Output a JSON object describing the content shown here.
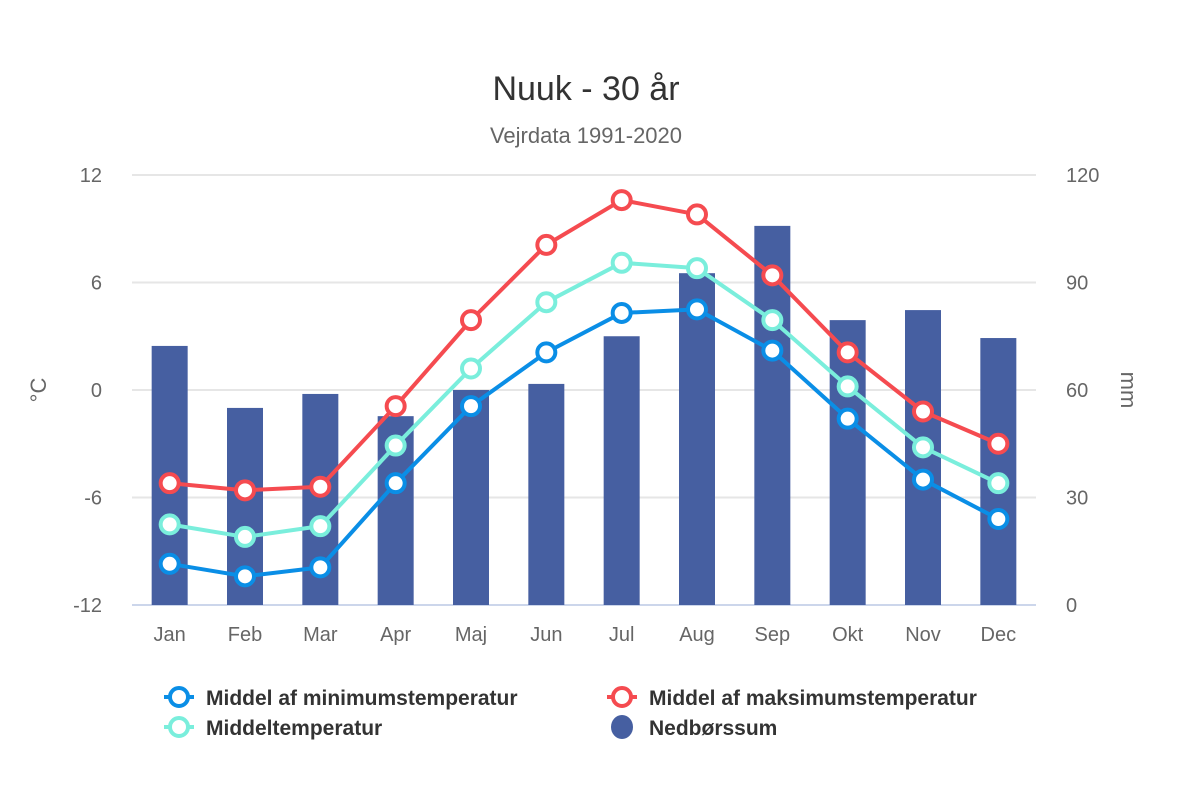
{
  "chart_data": {
    "type": "bar+line",
    "title": "Nuuk - 30 år",
    "subtitle": "Vejrdata 1991-2020",
    "categories": [
      "Jan",
      "Feb",
      "Mar",
      "Apr",
      "Maj",
      "Jun",
      "Jul",
      "Aug",
      "Sep",
      "Okt",
      "Nov",
      "Dec"
    ],
    "y_left": {
      "label": "°C",
      "range": [
        -12,
        12
      ],
      "ticks": [
        -12,
        -6,
        0,
        6,
        12
      ],
      "tick_labels": [
        "-12",
        "-6",
        "0",
        "6",
        "12"
      ]
    },
    "y_right": {
      "label": "mm",
      "range": [
        0,
        120
      ],
      "ticks": [
        0,
        30,
        60,
        90,
        120
      ],
      "tick_labels": [
        "0",
        "30",
        "60",
        "90",
        "120"
      ]
    },
    "grid": true,
    "legend_position": "bottom",
    "series": [
      {
        "name": "Middel af minimumstemperatur",
        "type": "line",
        "axis": "left",
        "color": "#0a8ee6",
        "values": [
          -9.7,
          -10.4,
          -9.9,
          -5.2,
          -0.9,
          2.1,
          4.3,
          4.5,
          2.2,
          -1.6,
          -5.0,
          -7.2
        ]
      },
      {
        "name": "Middel af maksimumstemperatur",
        "type": "line",
        "axis": "left",
        "color": "#f54b50",
        "values": [
          -5.2,
          -5.6,
          -5.4,
          -0.9,
          3.9,
          8.1,
          10.6,
          9.8,
          6.4,
          2.1,
          -1.2,
          -3.0
        ]
      },
      {
        "name": "Middeltemperatur",
        "type": "line",
        "axis": "left",
        "color": "#7aeedc",
        "values": [
          -7.5,
          -8.2,
          -7.6,
          -3.1,
          1.2,
          4.9,
          7.1,
          6.8,
          3.9,
          0.2,
          -3.2,
          -5.2
        ]
      },
      {
        "name": "Nedbørssum",
        "type": "bar",
        "axis": "right",
        "color": "#465fa1",
        "values": [
          72.3,
          55.0,
          58.9,
          52.7,
          60.0,
          61.7,
          75.0,
          92.6,
          105.8,
          79.5,
          82.3,
          74.5
        ]
      }
    ]
  }
}
